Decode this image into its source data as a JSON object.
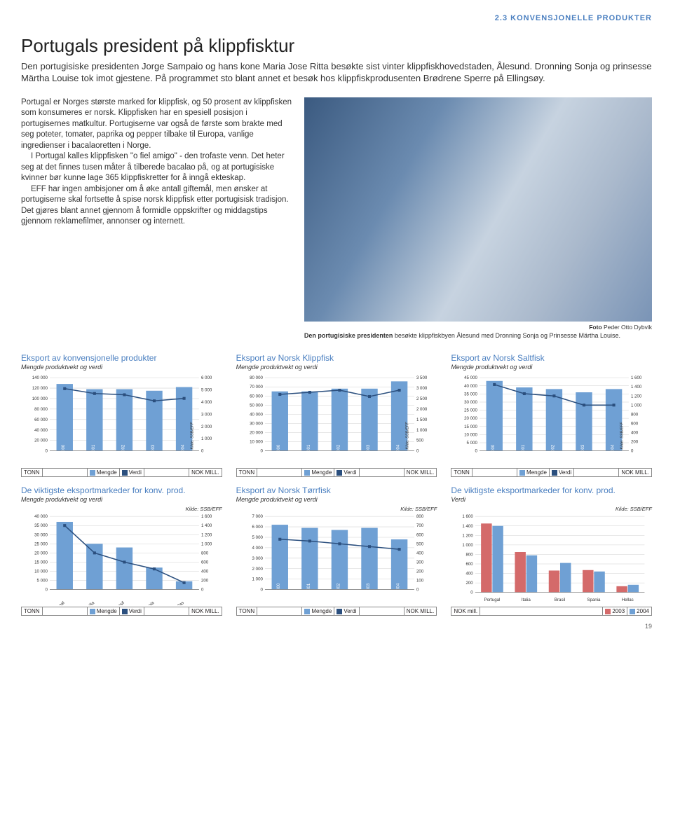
{
  "section_tag": "2.3 KONVENSJONELLE PRODUKTER",
  "headline": "Portugals president på klippfisktur",
  "lead": "Den portugisiske presidenten Jorge Sampaio og hans kone Maria Jose Ritta besøkte sist vinter klippfiskhovedstaden, Ålesund. Dronning Sonja og prinsesse Märtha Louise tok imot gjestene. På programmet sto blant annet et besøk hos klippfiskprodusenten Brødrene Sperre på Ellingsøy.",
  "para1": "Portugal er Norges største marked for klippfisk, og 50 prosent av klippfisken som konsumeres er norsk. Klippfisken har en spesiell posisjon i portugisernes matkultur. Portugiserne var også de første som brakte med seg poteter, tomater, paprika og pepper tilbake til Europa, vanlige ingredienser i bacalaoretten i Norge.",
  "para2": "I Portugal kalles klippfisken \"o fiel amigo\" - den trofaste venn. Det heter seg at det finnes tusen måter å tilberede bacalao på, og at portugisiske kvinner bør kunne lage 365 klippfiskretter for å inngå ekteskap.",
  "para3": "EFF har ingen ambisjoner om å øke antall giftemål, men ønsker at portugiserne skal fortsette å spise norsk klippfisk etter portugisisk tradisjon. Det gjøres blant annet gjennom å formidle oppskrifter og middagstips gjennom reklamefilmer, annonser og internett.",
  "photo_credit_label": "Foto",
  "photo_credit_name": " Peder Otto Dybvik",
  "caption_bold": "Den portugisiske presidenten ",
  "caption_rest": "besøkte klippfiskbyen Ålesund med Dronning Sonja og Prinsesse Märtha Louise.",
  "legend_common": {
    "tonn": "TONN",
    "mengde": "Mengde",
    "verdi": "Verdi",
    "nokmill": "NOK MILL.",
    "nokmill_lc": "NOK mill.",
    "y2003": "2003",
    "y2004": "2004"
  },
  "colors": {
    "bar_mengde": "#6fa0d4",
    "line_verdi": "#2b4f7e",
    "bar_2003": "#d46a6a",
    "bar_2004": "#6fa0d4",
    "grid": "#d0d0d0",
    "axis": "#888888",
    "label": "#333333",
    "title": "#4a7fc0"
  },
  "charts": [
    {
      "id": "c1",
      "title": "Eksport av konvensjonelle produkter",
      "sub": "Mengde produktvekt og verdi",
      "type": "dual_bar_line",
      "years": [
        "2000",
        "2001",
        "2002",
        "2003",
        "2004"
      ],
      "left_ticks": [
        0,
        20000,
        40000,
        60000,
        80000,
        100000,
        120000,
        140000
      ],
      "right_ticks": [
        0,
        1000,
        2000,
        3000,
        4000,
        5000,
        6000
      ],
      "bar_values": [
        128000,
        118000,
        118000,
        115000,
        122000
      ],
      "line_values": [
        5100,
        4700,
        4600,
        4100,
        4300
      ],
      "kilde": "Kilde: SSB/EFF",
      "kilde_inside": true
    },
    {
      "id": "c2",
      "title": "Eksport av Norsk Klippfisk",
      "sub": "Mengde produktvekt og verdi",
      "type": "dual_bar_line",
      "years": [
        "2000",
        "2001",
        "2002",
        "2003",
        "2004"
      ],
      "left_ticks": [
        0,
        10000,
        20000,
        30000,
        40000,
        50000,
        60000,
        70000,
        80000
      ],
      "right_ticks": [
        0,
        500,
        1000,
        1500,
        2000,
        2500,
        3000,
        3500
      ],
      "bar_values": [
        65000,
        65000,
        68000,
        68000,
        76000
      ],
      "line_values": [
        2700,
        2800,
        2900,
        2600,
        2900
      ],
      "kilde": "Kilde: SSB/EFF",
      "kilde_inside": true
    },
    {
      "id": "c3",
      "title": "Eksport av Norsk Saltfisk",
      "sub": "Mengde produktvekt og verdi",
      "type": "dual_bar_line",
      "years": [
        "2000",
        "2001",
        "2002",
        "2003",
        "2004"
      ],
      "left_ticks": [
        0,
        5000,
        10000,
        15000,
        20000,
        25000,
        30000,
        35000,
        40000,
        45000
      ],
      "right_ticks": [
        0,
        200,
        400,
        600,
        800,
        1000,
        1200,
        1400,
        1600
      ],
      "bar_values": [
        43000,
        39000,
        38000,
        36000,
        38000
      ],
      "line_values": [
        1450,
        1250,
        1200,
        1000,
        1000
      ],
      "kilde": "Kilde: SSB/EFF",
      "kilde_inside": true
    },
    {
      "id": "c4",
      "title": "De viktigste eksportmarkeder for konv. prod.",
      "sub": "Mengde produktvekt og verdi",
      "type": "dual_bar_line",
      "categories": [
        "Portugal",
        "Italia",
        "Brasil",
        "Spania",
        "Hellas"
      ],
      "slanted": true,
      "left_ticks": [
        0,
        5000,
        10000,
        15000,
        20000,
        25000,
        30000,
        35000,
        40000
      ],
      "right_ticks": [
        0,
        200,
        400,
        600,
        800,
        1000,
        1200,
        1400,
        1600
      ],
      "bar_values": [
        37000,
        25000,
        23000,
        12000,
        4500
      ],
      "line_values": [
        1400,
        800,
        600,
        450,
        150
      ],
      "kilde": "Kilde: SSB/EFF",
      "kilde_top": true
    },
    {
      "id": "c5",
      "title": "Eksport av Norsk Tørrfisk",
      "sub": "Mengde produktvekt og verdi",
      "type": "dual_bar_line",
      "years": [
        "2000",
        "2001",
        "2002",
        "2003",
        "2004"
      ],
      "left_ticks": [
        0,
        1000,
        2000,
        3000,
        4000,
        5000,
        6000,
        7000
      ],
      "right_ticks": [
        0,
        100,
        200,
        300,
        400,
        500,
        600,
        700,
        800
      ],
      "bar_values": [
        6200,
        5900,
        5700,
        5900,
        4800
      ],
      "line_values": [
        550,
        530,
        500,
        470,
        440
      ],
      "kilde": "Kilde: SSB/EFF",
      "kilde_top": true
    },
    {
      "id": "c6",
      "title": "De viktigste eksportmarkeder for konv. prod.",
      "sub": "Verdi",
      "type": "grouped_bar",
      "categories": [
        "Portugal",
        "Italia",
        "Brasil",
        "Spania",
        "Hellas"
      ],
      "left_ticks": [
        0,
        200,
        400,
        600,
        800,
        1000,
        1200,
        1400,
        1600
      ],
      "series": [
        {
          "name": "2003",
          "color": "#d46a6a",
          "values": [
            1450,
            850,
            460,
            470,
            130
          ]
        },
        {
          "name": "2004",
          "color": "#6fa0d4",
          "values": [
            1400,
            780,
            620,
            440,
            160
          ]
        }
      ],
      "kilde": "Kilde: SSB/EFF",
      "kilde_top": true
    }
  ],
  "page_number": "19"
}
